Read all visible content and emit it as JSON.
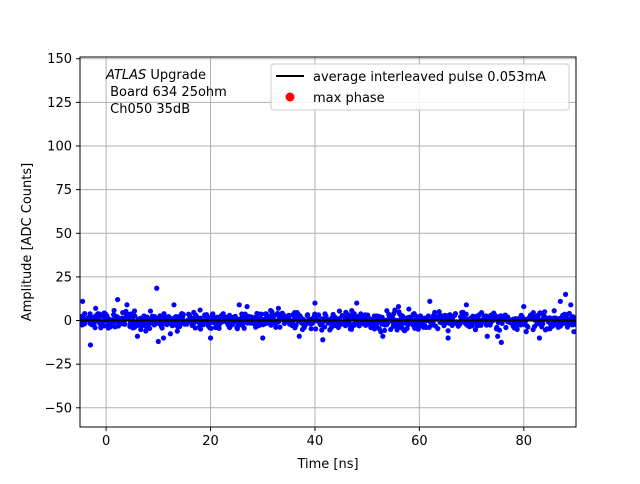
{
  "chart_data": {
    "type": "scatter",
    "xlabel": "Time [ns]",
    "ylabel": "Amplitude [ADC Counts]",
    "xlim": [
      -5,
      90
    ],
    "ylim": [
      -61,
      151
    ],
    "grid": true,
    "legend_placement": "top-right",
    "x_ticks": [
      0,
      20,
      40,
      60,
      80
    ],
    "x_tick_labels": [
      "0",
      "20",
      "40",
      "60",
      "80"
    ],
    "y_ticks": [
      150,
      125,
      100,
      75,
      50,
      25,
      0,
      -25,
      -50
    ],
    "y_tick_labels": [
      "150",
      "125",
      "100",
      "75",
      "50",
      "25",
      "0",
      "−25",
      "−50"
    ],
    "annotation": {
      "line1_italic": "ATLAS",
      "line1_rest": " Upgrade",
      "line2": " Board 634 25ohm",
      "line3": " Ch050 35dB"
    },
    "series": [
      {
        "name": "average interleaved pulse 0.053mA",
        "kind": "line",
        "color": "#000000",
        "x": [
          -5,
          90
        ],
        "y": [
          0,
          0
        ]
      },
      {
        "name": "max phase",
        "kind": "marker",
        "color": "#ff0000",
        "x": [],
        "y": []
      },
      {
        "name": "",
        "kind": "scatter",
        "color": "#0000ff",
        "points": [
          [
            -4.5,
            11
          ],
          [
            -4.1,
            4
          ],
          [
            -3.0,
            -14
          ],
          [
            -2.0,
            7
          ],
          [
            2.2,
            12
          ],
          [
            4.0,
            9
          ],
          [
            6.0,
            -9
          ],
          [
            7.6,
            -6
          ],
          [
            9.7,
            18.5
          ],
          [
            10.0,
            -12
          ],
          [
            11.0,
            -10
          ],
          [
            13.0,
            9
          ],
          [
            18.0,
            6
          ],
          [
            20.0,
            -10
          ],
          [
            25.5,
            9
          ],
          [
            27.0,
            8
          ],
          [
            30.0,
            -10
          ],
          [
            33.0,
            7
          ],
          [
            37.0,
            -9
          ],
          [
            40.0,
            10
          ],
          [
            41.5,
            -11
          ],
          [
            48.0,
            10
          ],
          [
            53.0,
            -9
          ],
          [
            56.0,
            8
          ],
          [
            62.0,
            11
          ],
          [
            65.5,
            -10
          ],
          [
            69.0,
            9
          ],
          [
            73.0,
            -9
          ],
          [
            75.0,
            -9
          ],
          [
            75.7,
            -12.5
          ],
          [
            80.0,
            8
          ],
          [
            83.0,
            -10
          ],
          [
            87.0,
            11
          ],
          [
            88.0,
            15
          ],
          [
            89.0,
            9
          ],
          [
            -2.3,
            -2
          ],
          [
            14.5,
            4
          ],
          [
            21.0,
            -4
          ],
          [
            35.0,
            3
          ],
          [
            47.0,
            -5
          ],
          [
            59.0,
            4
          ],
          [
            71.0,
            -3
          ],
          [
            84.0,
            5
          ]
        ],
        "noise_sigma": 3.5,
        "dense_count": 900
      }
    ]
  }
}
